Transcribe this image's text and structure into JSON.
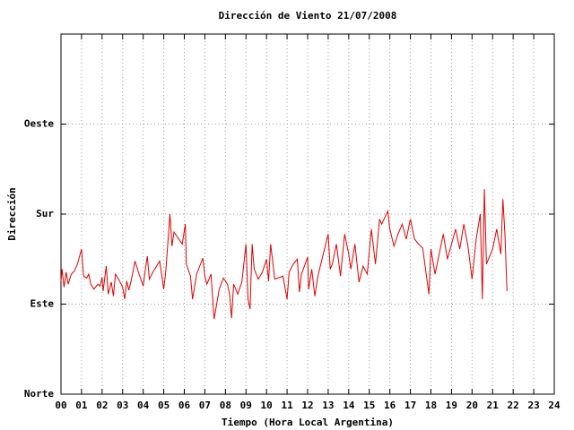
{
  "chart_data": {
    "type": "line",
    "title": "Dirección de Viento 21/07/2008",
    "xlabel": "Tiempo (Hora Local Argentina)",
    "ylabel": "Dirección",
    "color": "#e00000",
    "grid": true,
    "xlim": [
      0,
      24
    ],
    "xticks": [
      {
        "value": 0,
        "label": "00"
      },
      {
        "value": 1,
        "label": "01"
      },
      {
        "value": 2,
        "label": "02"
      },
      {
        "value": 3,
        "label": "03"
      },
      {
        "value": 4,
        "label": "04"
      },
      {
        "value": 5,
        "label": "05"
      },
      {
        "value": 6,
        "label": "06"
      },
      {
        "value": 7,
        "label": "07"
      },
      {
        "value": 8,
        "label": "08"
      },
      {
        "value": 9,
        "label": "09"
      },
      10,
      11,
      12,
      13,
      14,
      15,
      16,
      17,
      18,
      19,
      20,
      21,
      22,
      23,
      24
    ],
    "ylim": [
      0,
      360
    ],
    "yticks": [
      {
        "value": 0,
        "label": "Norte"
      },
      {
        "value": 90,
        "label": "Este"
      },
      {
        "value": 180,
        "label": "Sur"
      },
      {
        "value": 270,
        "label": "Oeste"
      }
    ],
    "x": [
      0.0,
      0.05,
      0.15,
      0.25,
      0.35,
      0.5,
      0.65,
      0.8,
      1.0,
      1.1,
      1.25,
      1.35,
      1.45,
      1.6,
      1.8,
      1.9,
      2.0,
      2.05,
      2.2,
      2.3,
      2.45,
      2.55,
      2.65,
      2.8,
      3.0,
      3.1,
      3.2,
      3.3,
      3.4,
      3.6,
      3.8,
      4.0,
      4.1,
      4.2,
      4.3,
      4.5,
      4.8,
      5.0,
      5.1,
      5.3,
      5.4,
      5.5,
      5.9,
      6.05,
      6.1,
      6.3,
      6.4,
      6.6,
      6.9,
      7.0,
      7.1,
      7.3,
      7.45,
      7.7,
      7.9,
      8.1,
      8.2,
      8.3,
      8.4,
      8.6,
      8.8,
      9.0,
      9.1,
      9.2,
      9.3,
      9.4,
      9.6,
      9.8,
      10.0,
      10.1,
      10.2,
      10.4,
      10.8,
      11.0,
      11.1,
      11.3,
      11.5,
      11.6,
      11.7,
      12.0,
      12.05,
      12.2,
      12.35,
      12.5,
      12.7,
      13.0,
      13.1,
      13.2,
      13.4,
      13.6,
      13.8,
      14.0,
      14.1,
      14.3,
      14.5,
      14.7,
      14.9,
      15.1,
      15.3,
      15.5,
      15.6,
      15.9,
      16.0,
      16.2,
      16.4,
      16.6,
      16.8,
      17.0,
      17.2,
      17.4,
      17.6,
      17.9,
      18.0,
      18.2,
      18.4,
      18.6,
      18.8,
      19.0,
      19.2,
      19.4,
      19.6,
      19.8,
      20.0,
      20.2,
      20.4,
      20.5,
      20.6,
      20.7,
      21.0,
      21.2,
      21.4,
      21.5,
      21.6,
      21.7
    ],
    "values": [
      113,
      125,
      107,
      122,
      110,
      120,
      123,
      130,
      145,
      118,
      116,
      120,
      110,
      105,
      110,
      108,
      117,
      103,
      128,
      100,
      112,
      98,
      120,
      115,
      107,
      95,
      113,
      104,
      112,
      133,
      120,
      108,
      124,
      138,
      115,
      123,
      133,
      105,
      123,
      180,
      148,
      162,
      150,
      170,
      130,
      118,
      95,
      120,
      136,
      118,
      110,
      120,
      75,
      105,
      116,
      110,
      100,
      76,
      110,
      100,
      112,
      150,
      95,
      85,
      150,
      125,
      115,
      122,
      135,
      113,
      150,
      115,
      118,
      95,
      122,
      130,
      135,
      102,
      120,
      137,
      105,
      125,
      98,
      118,
      135,
      160,
      125,
      130,
      150,
      118,
      160,
      140,
      125,
      150,
      112,
      128,
      120,
      165,
      130,
      175,
      170,
      183,
      165,
      148,
      160,
      170,
      155,
      175,
      155,
      150,
      146,
      100,
      145,
      120,
      140,
      160,
      135,
      150,
      165,
      145,
      170,
      148,
      115,
      155,
      180,
      95,
      205,
      130,
      145,
      165,
      140,
      195,
      160,
      103
    ]
  }
}
